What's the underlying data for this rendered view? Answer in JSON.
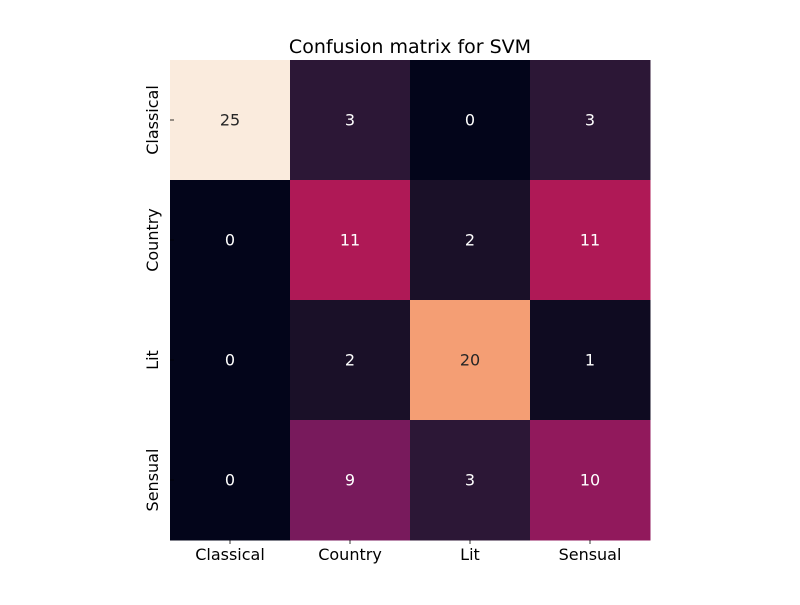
{
  "chart_data": {
    "type": "heatmap",
    "title": "Confusion matrix for SVM",
    "xlabel": "",
    "ylabel": "",
    "x_categories": [
      "Classical",
      "Country",
      "Lit",
      "Sensual"
    ],
    "y_categories": [
      "Classical",
      "Country",
      "Lit",
      "Sensual"
    ],
    "values": [
      [
        25,
        3,
        0,
        3
      ],
      [
        0,
        11,
        2,
        11
      ],
      [
        0,
        2,
        20,
        1
      ],
      [
        0,
        9,
        3,
        10
      ]
    ],
    "colormap": "rocket",
    "vmin": 0,
    "vmax": 25,
    "colorbar": false,
    "grid": false
  },
  "colors": {
    "light_text": "#ffffff",
    "dark_text": "#262626"
  }
}
